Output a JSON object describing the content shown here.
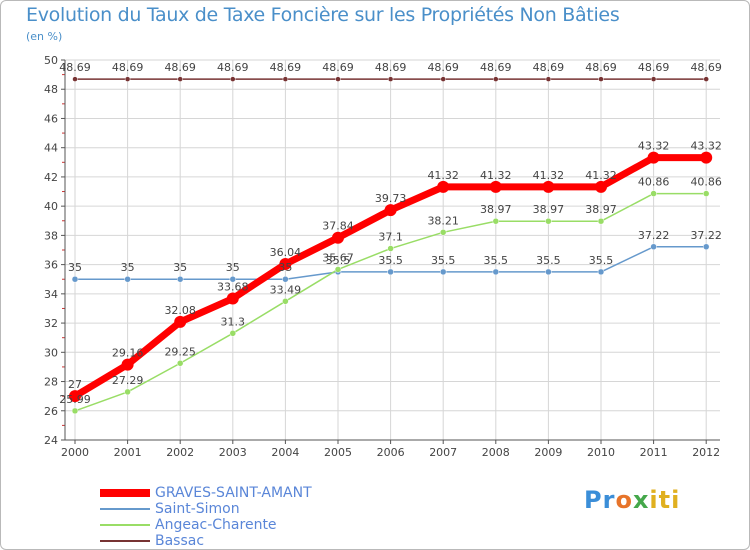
{
  "title": "Evolution du Taux de Taxe Foncière sur les Propriétés Non Bâties",
  "unit_label": "(en %)",
  "logo": {
    "p1": "Pr",
    "p2": "o",
    "p3": "x",
    "p4": "iti"
  },
  "chart_data": {
    "type": "line",
    "title": "Evolution du Taux de Taxe Foncière sur les Propriétés Non Bâties",
    "ylabel": "(en %)",
    "xlabel": "",
    "x": [
      "2000",
      "2001",
      "2002",
      "2003",
      "2004",
      "2005",
      "2006",
      "2007",
      "2008",
      "2009",
      "2010",
      "2011",
      "2012"
    ],
    "ylim": [
      24,
      50
    ],
    "yticks": [
      24,
      26,
      28,
      30,
      32,
      34,
      36,
      38,
      40,
      42,
      44,
      46,
      48,
      50
    ],
    "grid": true,
    "legend_position": "bottom-left",
    "series": [
      {
        "name": "GRAVES-SAINT-AMANT",
        "color": "#ff0000",
        "values": [
          27,
          29.16,
          32.08,
          33.68,
          36.04,
          37.84,
          39.73,
          41.32,
          41.32,
          41.32,
          41.32,
          43.32,
          43.32
        ],
        "labels": [
          "27",
          "29.16",
          "32.08",
          "33.68",
          "36.04",
          "37.84",
          "39.73",
          "41.32",
          "41.32",
          "41.32",
          "41.32",
          "43.32",
          "43.32"
        ]
      },
      {
        "name": "Saint-Simon",
        "color": "#6699cc",
        "values": [
          35,
          35,
          35,
          35,
          35,
          35.5,
          35.5,
          35.5,
          35.5,
          35.5,
          35.5,
          37.22,
          37.22
        ],
        "labels": [
          "35",
          "35",
          "35",
          "35",
          "35",
          "35.5",
          "35.5",
          "35.5",
          "35.5",
          "35.5",
          "35.5",
          "37.22",
          "37.22"
        ]
      },
      {
        "name": "Angeac-Charente",
        "color": "#99dd66",
        "values": [
          25.99,
          27.29,
          29.25,
          31.3,
          33.49,
          35.67,
          37.1,
          38.21,
          38.97,
          38.97,
          38.97,
          40.86,
          40.86
        ],
        "labels": [
          "25.99",
          "27.29",
          "29.25",
          "31.3",
          "33.49",
          "35.67",
          "37.1",
          "38.21",
          "38.97",
          "38.97",
          "38.97",
          "40.86",
          "40.86"
        ]
      },
      {
        "name": "Bassac",
        "color": "#773333",
        "values": [
          48.69,
          48.69,
          48.69,
          48.69,
          48.69,
          48.69,
          48.69,
          48.69,
          48.69,
          48.69,
          48.69,
          48.69,
          48.69
        ],
        "labels": [
          "48.69",
          "48.69",
          "48.69",
          "48.69",
          "48.69",
          "48.69",
          "48.69",
          "48.69",
          "48.69",
          "48.69",
          "48.69",
          "48.69",
          "48.69"
        ]
      }
    ]
  }
}
